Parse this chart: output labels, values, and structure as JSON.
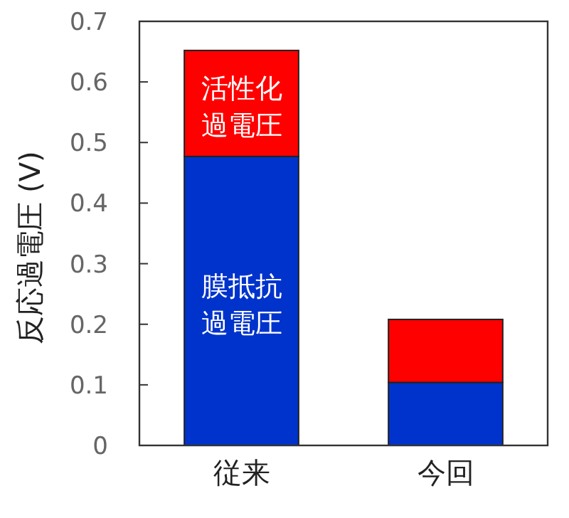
{
  "chart_data": {
    "type": "bar",
    "stacked": true,
    "ylabel": "反応過電圧 (V)",
    "categories": [
      "従来",
      "今回"
    ],
    "series": [
      {
        "name": "膜抵抗過電圧",
        "color": "#0033cc",
        "values": [
          0.477,
          0.104
        ]
      },
      {
        "name": "活性化過電圧",
        "color": "#ff0000",
        "values": [
          0.175,
          0.104
        ]
      }
    ],
    "ylim": [
      0,
      0.7
    ],
    "yticks": [
      0,
      0.1,
      0.2,
      0.3,
      0.4,
      0.5,
      0.6,
      0.7
    ]
  }
}
